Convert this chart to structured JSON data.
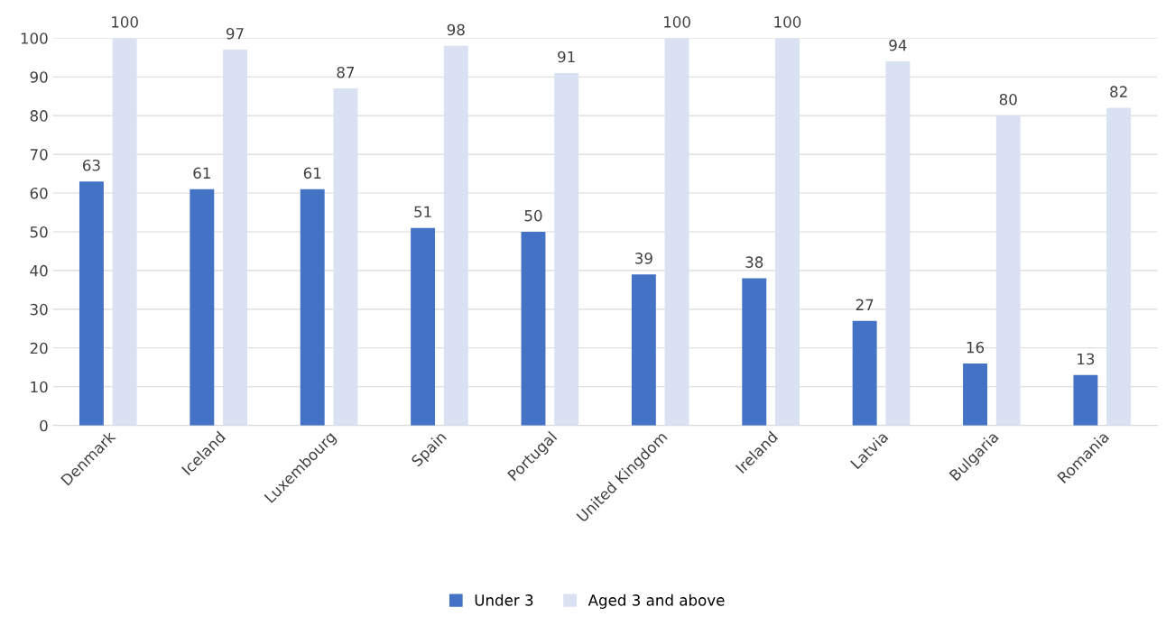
{
  "chart_data": {
    "type": "bar",
    "categories": [
      "Denmark",
      "Iceland",
      "Luxembourg",
      "Spain",
      "Portugal",
      "United Kingdom",
      "Ireland",
      "Latvia",
      "Bulgaria",
      "Romania"
    ],
    "series": [
      {
        "name": "Under 3",
        "color": "#4472c4",
        "values": [
          63,
          61,
          61,
          51,
          50,
          39,
          38,
          27,
          16,
          13
        ]
      },
      {
        "name": "Aged 3 and above",
        "color": "#d9e1f2",
        "values": [
          100,
          97,
          87,
          98,
          91,
          100,
          100,
          94,
          80,
          82
        ]
      }
    ],
    "ylim": [
      0,
      100
    ],
    "yticks": [
      0,
      10,
      20,
      30,
      40,
      50,
      60,
      70,
      80,
      90,
      100
    ],
    "grid": "y",
    "legend": "bottom",
    "data_labels": true
  }
}
